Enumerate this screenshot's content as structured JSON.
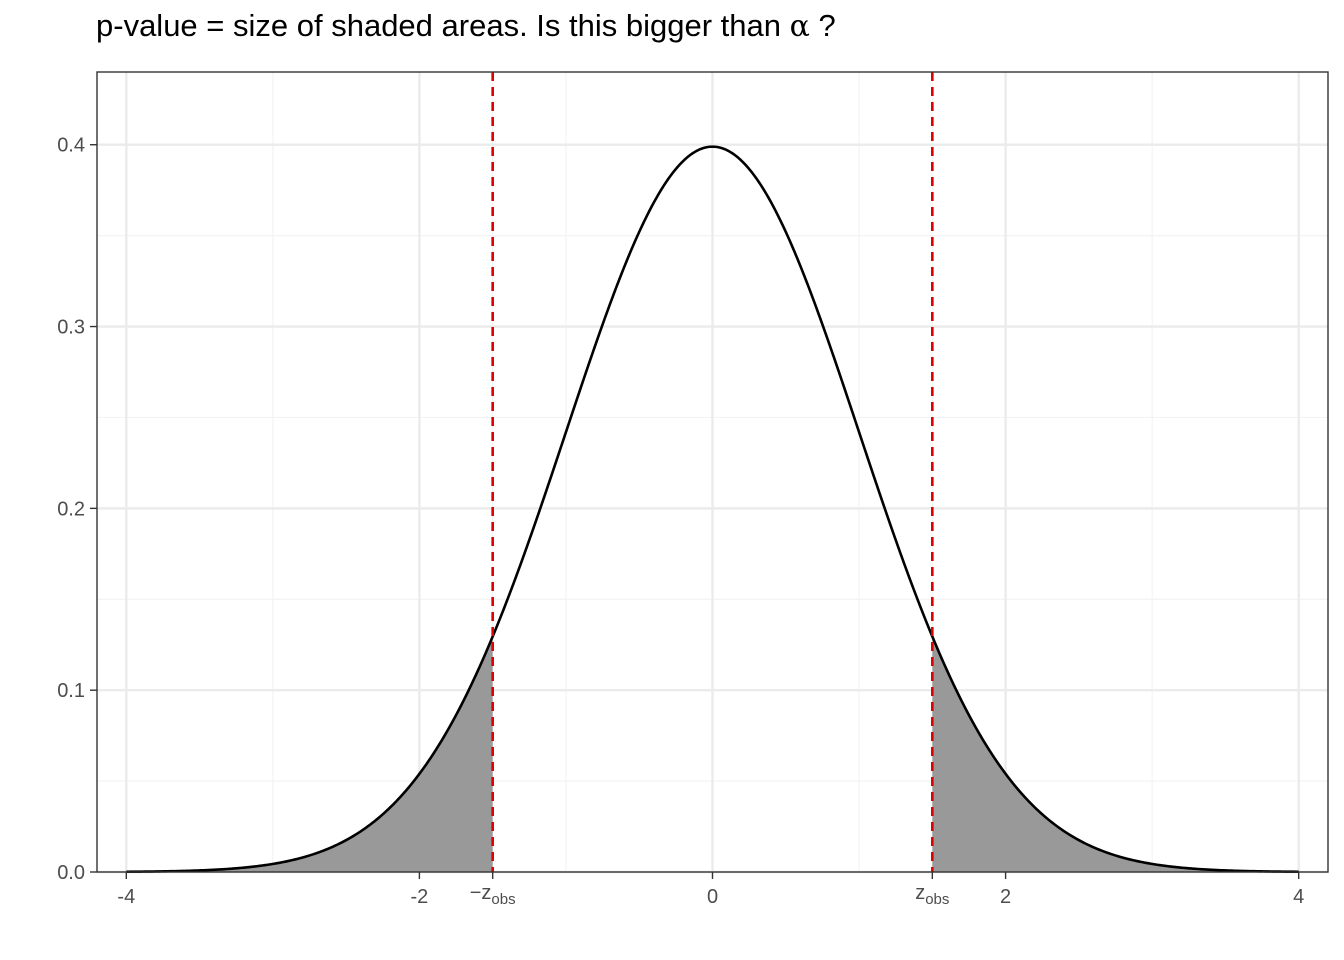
{
  "title": {
    "prefix": "p-value = size of shaded areas. Is this bigger than ",
    "symbol": "α",
    "suffix": " ?"
  },
  "chart_data": {
    "type": "area",
    "title": "p-value = size of shaded areas. Is this bigger than α ?",
    "xlabel": "",
    "ylabel": "",
    "xlim": [
      -4.2,
      4.2
    ],
    "ylim": [
      0,
      0.44
    ],
    "grid": true,
    "distribution": "standard normal density",
    "x_ticks": [
      {
        "value": -4,
        "label": "-4"
      },
      {
        "value": -2,
        "label": "-2"
      },
      {
        "value": 0,
        "label": "0"
      },
      {
        "value": 2,
        "label": "2"
      },
      {
        "value": 4,
        "label": "4"
      }
    ],
    "y_ticks": [
      {
        "value": 0.0,
        "label": "0.0"
      },
      {
        "value": 0.1,
        "label": "0.1"
      },
      {
        "value": 0.2,
        "label": "0.2"
      },
      {
        "value": 0.3,
        "label": "0.3"
      },
      {
        "value": 0.4,
        "label": "0.4"
      }
    ],
    "y_minor_ticks": [
      0.05,
      0.15,
      0.25,
      0.35
    ],
    "x_minor_ticks": [
      -3,
      -1,
      1,
      3
    ],
    "critical_lines": [
      {
        "value": -1.5,
        "label_main": "−z",
        "label_sub": "obs",
        "color": "#dd0000"
      },
      {
        "value": 1.5,
        "label_main": "z",
        "label_sub": "obs",
        "color": "#dd0000"
      }
    ],
    "shaded_regions": [
      {
        "from": -4,
        "to": -1.5
      },
      {
        "from": 1.5,
        "to": 4
      }
    ],
    "curve": {
      "mean": 0,
      "sd": 1,
      "x_from": -4,
      "x_to": 4
    },
    "colors": {
      "curve": "#000000",
      "shade": "#999999",
      "critical": "#dd0000",
      "grid_major": "#ebebeb",
      "grid_minor": "#f3f3f3",
      "panel_border": "#333333",
      "tick_text": "#4d4d4d"
    }
  }
}
